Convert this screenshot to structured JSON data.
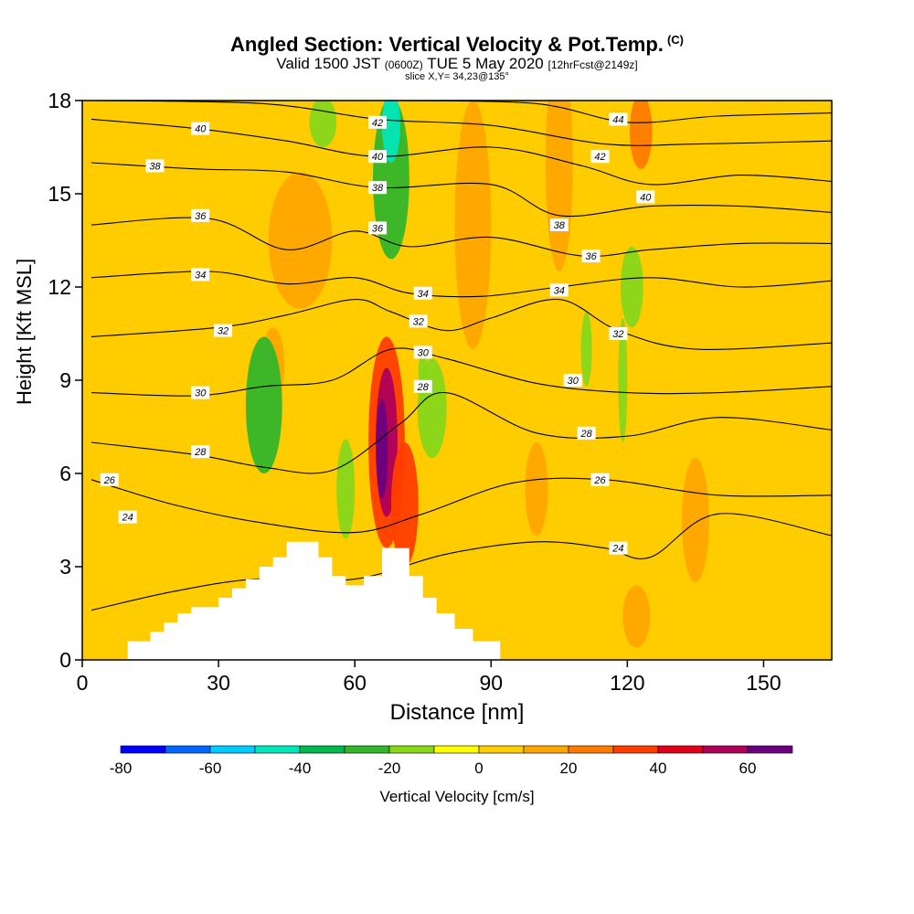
{
  "header": {
    "title": "Angled Section: Vertical Velocity & Pot.Temp.",
    "title_mark": "(C)",
    "subtitle_prefix": "Valid 1500 JST",
    "subtitle_z": "(0600Z)",
    "subtitle_main": "TUE 5 May 2020",
    "subtitle_fcst": "[12hrFcst@2149z]",
    "slice": "slice X,Y= 34,23@135°"
  },
  "chart_data": {
    "type": "heatmap",
    "title": "Angled Section: Vertical Velocity & Pot.Temp.",
    "xlabel": "Distance [nm]",
    "ylabel": "Height [Kft MSL]",
    "xlim": [
      0,
      165
    ],
    "ylim": [
      0,
      18
    ],
    "xticks": [
      0,
      30,
      60,
      90,
      120,
      150
    ],
    "yticks": [
      0,
      3,
      6,
      9,
      12,
      15,
      18
    ],
    "colorbar": {
      "label": "Vertical Velocity [cm/s]",
      "ticks": [
        -80,
        -60,
        -40,
        -20,
        0,
        20,
        40,
        60
      ],
      "levels": [
        -80,
        -70,
        -60,
        -50,
        -40,
        -30,
        -20,
        -10,
        0,
        10,
        20,
        30,
        40,
        50,
        60,
        70
      ],
      "colors": [
        "#0000ff",
        "#0066ff",
        "#00ccff",
        "#00e6b8",
        "#00b84d",
        "#33b52a",
        "#88d61a",
        "#ffff00",
        "#ffcc00",
        "#ffa500",
        "#ff7a00",
        "#ff3d00",
        "#e0001a",
        "#b00058",
        "#6a0080"
      ]
    },
    "terrain": [
      [
        0,
        0
      ],
      [
        10,
        0
      ],
      [
        10,
        0.6
      ],
      [
        15,
        0.6
      ],
      [
        15,
        0.9
      ],
      [
        18,
        0.9
      ],
      [
        18,
        1.2
      ],
      [
        21,
        1.2
      ],
      [
        21,
        1.5
      ],
      [
        24,
        1.5
      ],
      [
        24,
        1.7
      ],
      [
        30,
        1.7
      ],
      [
        30,
        2.0
      ],
      [
        33,
        2.0
      ],
      [
        33,
        2.3
      ],
      [
        36,
        2.3
      ],
      [
        36,
        2.6
      ],
      [
        39,
        2.6
      ],
      [
        39,
        3.0
      ],
      [
        42,
        3.0
      ],
      [
        42,
        3.3
      ],
      [
        45,
        3.3
      ],
      [
        45,
        3.8
      ],
      [
        52,
        3.8
      ],
      [
        52,
        3.3
      ],
      [
        55,
        3.3
      ],
      [
        55,
        2.7
      ],
      [
        58,
        2.7
      ],
      [
        58,
        2.4
      ],
      [
        62,
        2.4
      ],
      [
        62,
        2.7
      ],
      [
        66,
        2.7
      ],
      [
        66,
        3.6
      ],
      [
        72,
        3.6
      ],
      [
        72,
        2.7
      ],
      [
        75,
        2.7
      ],
      [
        75,
        2.0
      ],
      [
        78,
        2.0
      ],
      [
        78,
        1.5
      ],
      [
        82,
        1.5
      ],
      [
        82,
        1.0
      ],
      [
        86,
        1.0
      ],
      [
        86,
        0.6
      ],
      [
        92,
        0.6
      ],
      [
        92,
        0
      ],
      [
        165,
        0
      ]
    ],
    "velocity_cells": [
      {
        "x": 67,
        "y": 7.0,
        "rx": 4.0,
        "ry": 3.4,
        "w": 35
      },
      {
        "x": 67,
        "y": 7.0,
        "rx": 2.4,
        "ry": 2.4,
        "w": 50
      },
      {
        "x": 66,
        "y": 6.8,
        "rx": 1.3,
        "ry": 1.6,
        "w": 65
      },
      {
        "x": 71,
        "y": 5.0,
        "rx": 3.0,
        "ry": 2.0,
        "w": 30
      },
      {
        "x": 48,
        "y": 13.5,
        "rx": 7.0,
        "ry": 2.2,
        "w": 18
      },
      {
        "x": 86,
        "y": 14.0,
        "rx": 4.0,
        "ry": 4.0,
        "w": 15
      },
      {
        "x": 123,
        "y": 17.0,
        "rx": 2.5,
        "ry": 1.2,
        "w": 22
      },
      {
        "x": 42,
        "y": 9.5,
        "rx": 2.5,
        "ry": 1.2,
        "w": 18
      },
      {
        "x": 122,
        "y": 1.4,
        "rx": 3.0,
        "ry": 1.0,
        "w": 16
      },
      {
        "x": 105,
        "y": 16.0,
        "rx": 3.0,
        "ry": 3.5,
        "w": 10
      },
      {
        "x": 100,
        "y": 5.5,
        "rx": 2.5,
        "ry": 1.5,
        "w": 10
      },
      {
        "x": 135,
        "y": 4.5,
        "rx": 3.0,
        "ry": 2.0,
        "w": 12
      },
      {
        "x": 40,
        "y": 8.2,
        "rx": 4.0,
        "ry": 2.2,
        "w": -22
      },
      {
        "x": 58,
        "y": 5.5,
        "rx": 2.0,
        "ry": 1.6,
        "w": -18
      },
      {
        "x": 77,
        "y": 8.1,
        "rx": 3.2,
        "ry": 1.6,
        "w": -20
      },
      {
        "x": 68,
        "y": 15.5,
        "rx": 4.0,
        "ry": 2.6,
        "w": -22
      },
      {
        "x": 68,
        "y": 17.2,
        "rx": 2.0,
        "ry": 1.2,
        "w": -42
      },
      {
        "x": 53,
        "y": 17.3,
        "rx": 3.0,
        "ry": 0.8,
        "w": -20
      },
      {
        "x": 121,
        "y": 12.0,
        "rx": 2.5,
        "ry": 1.3,
        "w": -20
      },
      {
        "x": 111,
        "y": 10.0,
        "rx": 1.2,
        "ry": 1.2,
        "w": -16
      },
      {
        "x": 119,
        "y": 9.0,
        "rx": 1.0,
        "ry": 2.0,
        "w": -15
      },
      {
        "x": 75,
        "y": 9.3,
        "rx": 1.0,
        "ry": 0.6,
        "w": -14
      }
    ],
    "theta_contours": [
      {
        "value": 24,
        "points": [
          [
            2,
            1.6
          ],
          [
            20,
            2.2
          ],
          [
            38,
            2.6
          ],
          [
            60,
            2.6
          ],
          [
            80,
            3.4
          ],
          [
            100,
            3.8
          ],
          [
            115,
            3.6
          ],
          [
            125,
            3.3
          ],
          [
            140,
            4.7
          ],
          [
            165,
            4.0
          ]
        ]
      },
      {
        "value": 26,
        "points": [
          [
            2,
            5.8
          ],
          [
            20,
            5.0
          ],
          [
            40,
            4.4
          ],
          [
            60,
            4.1
          ],
          [
            75,
            4.7
          ],
          [
            95,
            5.7
          ],
          [
            115,
            5.8
          ],
          [
            140,
            5.3
          ],
          [
            165,
            5.3
          ]
        ]
      },
      {
        "value": 28,
        "points": [
          [
            2,
            7.0
          ],
          [
            25,
            6.6
          ],
          [
            40,
            6.2
          ],
          [
            55,
            6.1
          ],
          [
            70,
            7.6
          ],
          [
            80,
            8.6
          ],
          [
            100,
            7.3
          ],
          [
            120,
            7.2
          ],
          [
            140,
            7.8
          ],
          [
            165,
            7.4
          ]
        ]
      },
      {
        "value": 30,
        "points": [
          [
            2,
            8.6
          ],
          [
            25,
            8.5
          ],
          [
            40,
            8.8
          ],
          [
            55,
            9.0
          ],
          [
            68,
            10.0
          ],
          [
            80,
            9.7
          ],
          [
            100,
            8.9
          ],
          [
            120,
            8.6
          ],
          [
            140,
            8.6
          ],
          [
            165,
            8.8
          ]
        ]
      },
      {
        "value": 32,
        "points": [
          [
            2,
            10.4
          ],
          [
            30,
            10.7
          ],
          [
            45,
            11.1
          ],
          [
            60,
            11.6
          ],
          [
            68,
            11.2
          ],
          [
            80,
            10.6
          ],
          [
            90,
            11.0
          ],
          [
            105,
            11.6
          ],
          [
            118,
            10.6
          ],
          [
            135,
            10.0
          ],
          [
            165,
            10.2
          ]
        ]
      },
      {
        "value": 34,
        "points": [
          [
            2,
            12.3
          ],
          [
            28,
            12.5
          ],
          [
            45,
            12.1
          ],
          [
            60,
            12.3
          ],
          [
            72,
            11.8
          ],
          [
            88,
            11.7
          ],
          [
            105,
            12.0
          ],
          [
            125,
            12.3
          ],
          [
            145,
            12.0
          ],
          [
            165,
            12.2
          ]
        ]
      },
      {
        "value": 36,
        "points": [
          [
            2,
            14.0
          ],
          [
            28,
            14.2
          ],
          [
            45,
            13.2
          ],
          [
            60,
            13.8
          ],
          [
            72,
            13.3
          ],
          [
            90,
            13.6
          ],
          [
            110,
            13.0
          ],
          [
            125,
            13.2
          ],
          [
            145,
            13.4
          ],
          [
            165,
            13.4
          ]
        ]
      },
      {
        "value": 38,
        "points": [
          [
            2,
            16.0
          ],
          [
            25,
            15.8
          ],
          [
            45,
            15.7
          ],
          [
            65,
            15.2
          ],
          [
            90,
            15.3
          ],
          [
            105,
            14.3
          ],
          [
            125,
            14.6
          ],
          [
            145,
            14.6
          ],
          [
            165,
            14.4
          ]
        ]
      },
      {
        "value": 40,
        "points": [
          [
            2,
            17.4
          ],
          [
            25,
            17.1
          ],
          [
            45,
            16.7
          ],
          [
            65,
            16.2
          ],
          [
            90,
            16.5
          ],
          [
            110,
            15.9
          ],
          [
            125,
            15.3
          ],
          [
            145,
            15.6
          ],
          [
            165,
            15.4
          ]
        ]
      },
      {
        "value": 42,
        "points": [
          [
            2,
            18.0
          ],
          [
            40,
            17.9
          ],
          [
            65,
            17.4
          ],
          [
            90,
            17.2
          ],
          [
            115,
            16.6
          ],
          [
            135,
            16.6
          ],
          [
            165,
            16.7
          ]
        ]
      },
      {
        "value": 44,
        "points": [
          [
            70,
            18.0
          ],
          [
            100,
            17.9
          ],
          [
            120,
            17.3
          ],
          [
            140,
            17.5
          ],
          [
            165,
            17.6
          ]
        ]
      }
    ],
    "contour_labels": [
      {
        "text": "40",
        "x": 26,
        "y": 17.1
      },
      {
        "text": "38",
        "x": 16,
        "y": 15.9
      },
      {
        "text": "36",
        "x": 26,
        "y": 14.3
      },
      {
        "text": "34",
        "x": 26,
        "y": 12.4
      },
      {
        "text": "32",
        "x": 31,
        "y": 10.6
      },
      {
        "text": "30",
        "x": 26,
        "y": 8.6
      },
      {
        "text": "28",
        "x": 26,
        "y": 6.7
      },
      {
        "text": "26",
        "x": 6,
        "y": 5.8
      },
      {
        "text": "24",
        "x": 10,
        "y": 4.6
      },
      {
        "text": "42",
        "x": 65,
        "y": 17.3
      },
      {
        "text": "40",
        "x": 65,
        "y": 16.2
      },
      {
        "text": "38",
        "x": 65,
        "y": 15.2
      },
      {
        "text": "36",
        "x": 65,
        "y": 13.9
      },
      {
        "text": "34",
        "x": 75,
        "y": 11.8
      },
      {
        "text": "32",
        "x": 74,
        "y": 10.9
      },
      {
        "text": "30",
        "x": 75,
        "y": 9.9
      },
      {
        "text": "28",
        "x": 75,
        "y": 8.8
      },
      {
        "text": "44",
        "x": 118,
        "y": 17.4
      },
      {
        "text": "42",
        "x": 114,
        "y": 16.2
      },
      {
        "text": "40",
        "x": 124,
        "y": 14.9
      },
      {
        "text": "38",
        "x": 105,
        "y": 14.0
      },
      {
        "text": "36",
        "x": 112,
        "y": 13.0
      },
      {
        "text": "34",
        "x": 105,
        "y": 11.9
      },
      {
        "text": "32",
        "x": 118,
        "y": 10.5
      },
      {
        "text": "30",
        "x": 108,
        "y": 9.0
      },
      {
        "text": "28",
        "x": 111,
        "y": 7.3
      },
      {
        "text": "26",
        "x": 114,
        "y": 5.8
      },
      {
        "text": "24",
        "x": 118,
        "y": 3.6
      }
    ]
  }
}
